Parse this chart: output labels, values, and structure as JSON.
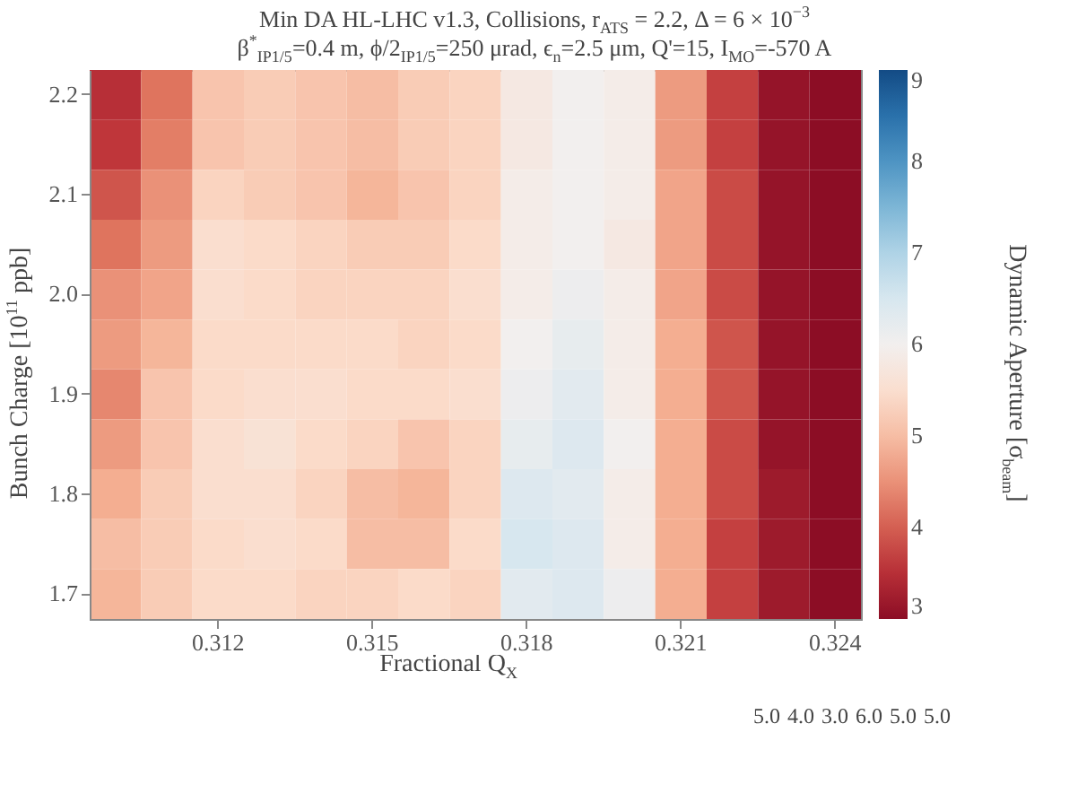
{
  "chart_data": {
    "type": "heatmap",
    "title": "Min DA HL-LHC v1.3, Collisions, r$_{ATS}$ = 2.2, Δ = 6 × 10$^{−3}$",
    "subtitle": "β$^{*}$$_{IP1/5}$=0.4 m, ϕ/2$_{IP1/5}$=250 μrad, ϵ$_{n}$=2.5 μm, Q'=15, I$_{MO}$=-570 A",
    "xlabel": "Fractional Q$_{X}$",
    "ylabel": "Bunch Charge [10$^{11}$ ppb]",
    "clabel": "Dynamic Aperture [σ$_{beam}$]",
    "categories": [
      null,
      null,
      "0.312",
      null,
      null,
      "0.315",
      null,
      null,
      "0.318",
      null,
      null,
      "0.321",
      null,
      null,
      "0.324"
    ],
    "y_categories": [
      "2.2",
      null,
      "2.1",
      null,
      "2.0",
      null,
      "1.9",
      null,
      "1.8",
      null,
      "1.7"
    ],
    "clim": [
      3,
      9
    ],
    "cticks": [
      3,
      4,
      5,
      6,
      7,
      8,
      9
    ],
    "cells": [
      [
        3.5,
        4.2,
        5.1,
        5.2,
        5.1,
        5.0,
        5.2,
        5.3,
        5.8,
        6.0,
        5.9,
        4.6,
        3.7,
        3.1,
        3.0
      ],
      [
        3.6,
        4.3,
        5.1,
        5.2,
        5.1,
        5.0,
        5.2,
        5.3,
        5.8,
        6.0,
        5.9,
        4.6,
        3.7,
        3.1,
        3.0
      ],
      [
        3.9,
        4.5,
        5.3,
        5.2,
        5.1,
        4.9,
        5.1,
        5.3,
        5.9,
        6.0,
        5.9,
        4.7,
        3.8,
        3.1,
        3.0
      ],
      [
        4.2,
        4.6,
        5.5,
        5.4,
        5.3,
        5.2,
        5.2,
        5.4,
        5.9,
        6.0,
        5.8,
        4.7,
        3.8,
        3.1,
        3.0
      ],
      [
        4.5,
        4.7,
        5.5,
        5.4,
        5.3,
        5.3,
        5.3,
        5.5,
        5.9,
        6.1,
        5.9,
        4.7,
        3.8,
        3.1,
        3.0
      ],
      [
        4.6,
        4.9,
        5.4,
        5.4,
        5.4,
        5.4,
        5.3,
        5.4,
        6.0,
        6.2,
        5.9,
        4.8,
        3.9,
        3.1,
        3.0
      ],
      [
        4.4,
        5.1,
        5.4,
        5.5,
        5.5,
        5.4,
        5.4,
        5.5,
        6.1,
        6.3,
        5.9,
        4.8,
        3.9,
        3.1,
        3.0
      ],
      [
        4.6,
        5.1,
        5.5,
        5.6,
        5.4,
        5.3,
        5.1,
        5.3,
        6.2,
        6.4,
        6.0,
        4.8,
        3.8,
        3.1,
        3.0
      ],
      [
        4.8,
        5.2,
        5.5,
        5.5,
        5.3,
        5.0,
        4.9,
        5.3,
        6.4,
        6.3,
        5.9,
        4.8,
        3.8,
        3.2,
        3.0
      ],
      [
        5.0,
        5.2,
        5.4,
        5.5,
        5.4,
        5.0,
        5.0,
        5.4,
        6.5,
        6.4,
        5.9,
        4.8,
        3.7,
        3.2,
        3.0
      ],
      [
        4.9,
        5.2,
        5.4,
        5.4,
        5.3,
        5.3,
        5.4,
        5.3,
        6.3,
        6.4,
        6.1,
        4.8,
        3.7,
        3.2,
        3.0
      ]
    ],
    "annotations": [
      "5.0",
      "4.0",
      "3.0",
      "6.0",
      "5.0",
      "5.0"
    ]
  }
}
